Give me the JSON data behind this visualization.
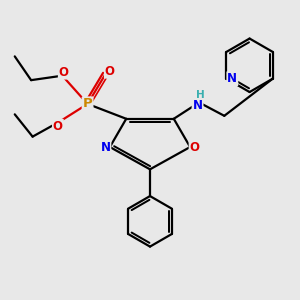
{
  "bg_color": "#e8e8e8",
  "atom_colors": {
    "C": "#000000",
    "N": "#0000ee",
    "O": "#dd0000",
    "P": "#cc8800",
    "H": "#3aafaf"
  },
  "bond_color": "#000000",
  "line_width": 1.6,
  "fig_size": [
    3.0,
    3.0
  ],
  "dpi": 100
}
